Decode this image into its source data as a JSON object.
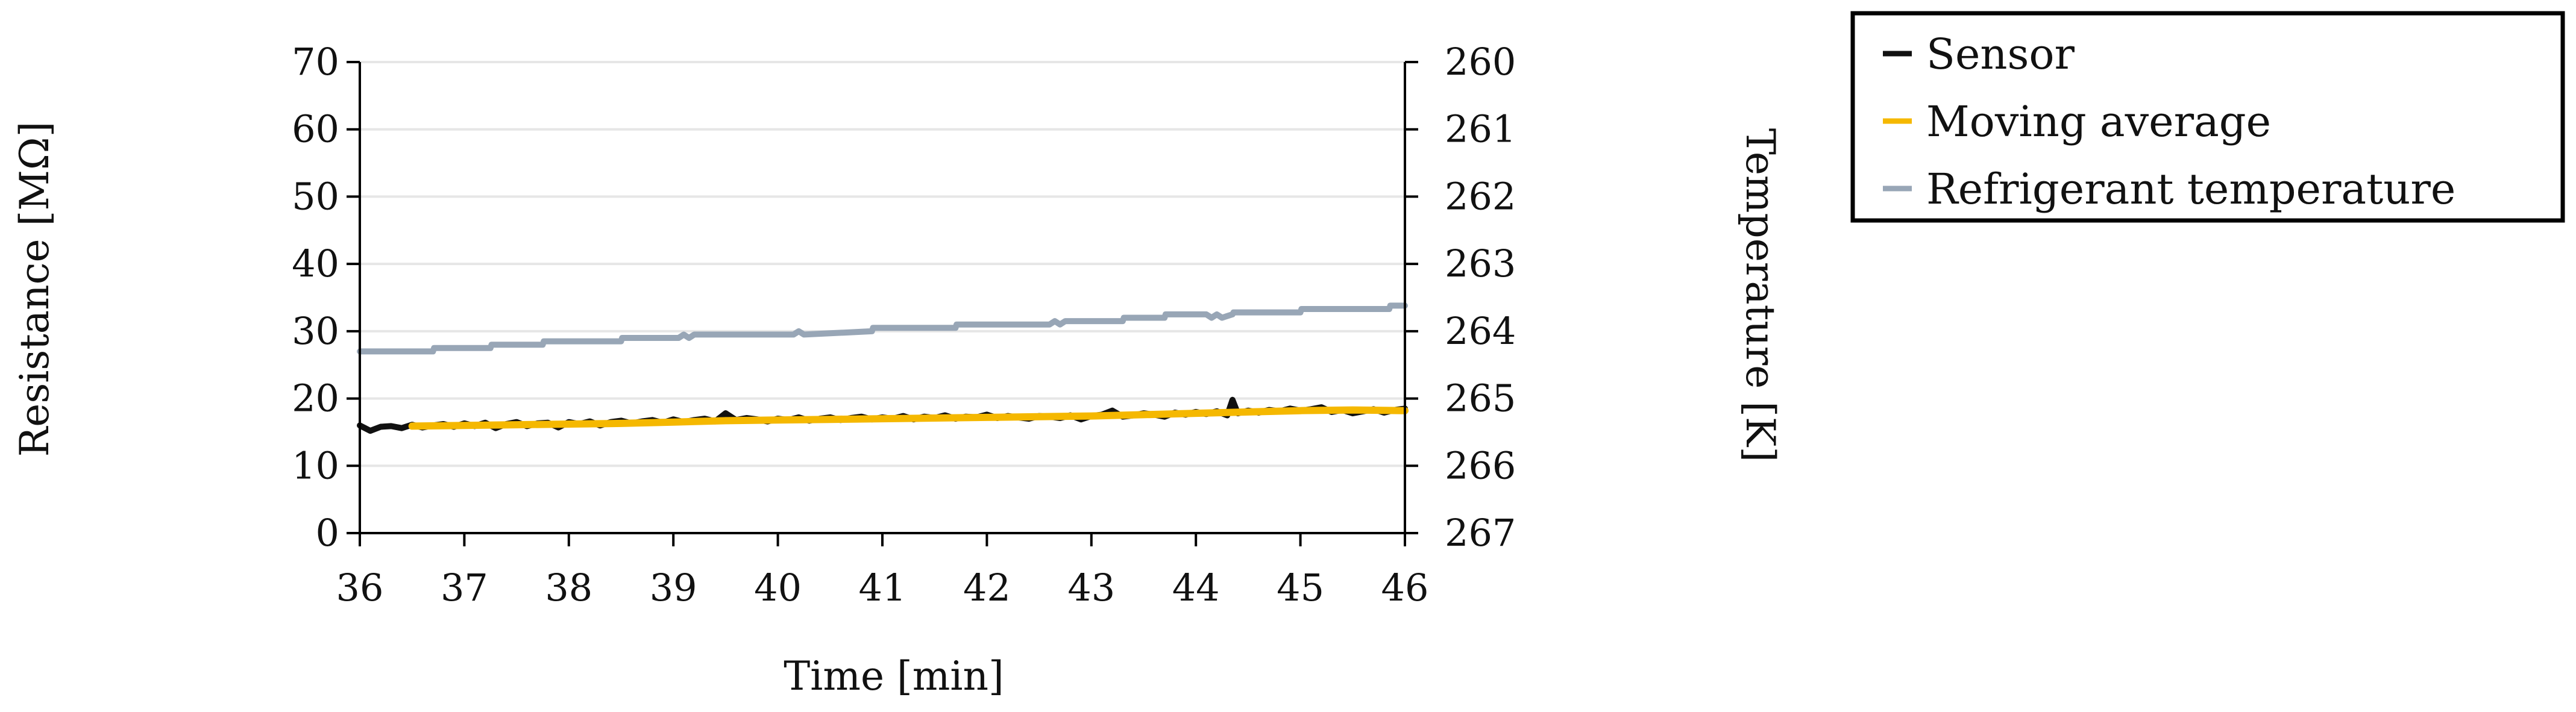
{
  "chart_data": {
    "type": "line",
    "xlabel": "Time [min]",
    "xlim": [
      36,
      46
    ],
    "x_ticks": [
      "36",
      "37",
      "38",
      "39",
      "40",
      "41",
      "42",
      "43",
      "44",
      "45",
      "46"
    ],
    "y_left": {
      "label": "Resistance [MΩ]",
      "lim": [
        0,
        70
      ],
      "ticks": [
        "0",
        "10",
        "20",
        "30",
        "40",
        "50",
        "60",
        "70"
      ]
    },
    "y_right": {
      "label": "Temperature [K]",
      "lim": [
        267,
        260
      ],
      "inverted": true,
      "ticks": [
        "267",
        "266",
        "265",
        "264",
        "263",
        "262",
        "261",
        "260"
      ]
    },
    "grid": true,
    "legend_position": "top-right, outside",
    "series": [
      {
        "name": "Sensor",
        "axis": "left",
        "color": "#111111",
        "x": [
          36.0,
          36.1,
          36.2,
          36.3,
          36.4,
          36.5,
          36.6,
          36.7,
          36.8,
          36.9,
          37.0,
          37.1,
          37.2,
          37.3,
          37.4,
          37.5,
          37.6,
          37.7,
          37.8,
          37.9,
          38.0,
          38.1,
          38.2,
          38.3,
          38.4,
          38.5,
          38.6,
          38.7,
          38.8,
          38.9,
          39.0,
          39.1,
          39.2,
          39.3,
          39.4,
          39.5,
          39.6,
          39.7,
          39.8,
          39.9,
          40.0,
          40.1,
          40.2,
          40.3,
          40.4,
          40.5,
          40.6,
          40.7,
          40.8,
          40.9,
          41.0,
          41.1,
          41.2,
          41.3,
          41.4,
          41.5,
          41.6,
          41.7,
          41.8,
          41.9,
          42.0,
          42.1,
          42.2,
          42.3,
          42.4,
          42.5,
          42.6,
          42.7,
          42.8,
          42.9,
          43.0,
          43.1,
          43.2,
          43.3,
          43.4,
          43.5,
          43.6,
          43.7,
          43.8,
          43.9,
          44.0,
          44.1,
          44.2,
          44.3,
          44.35,
          44.4,
          44.5,
          44.6,
          44.7,
          44.8,
          44.9,
          45.0,
          45.1,
          45.2,
          45.3,
          45.4,
          45.5,
          45.6,
          45.7,
          45.8,
          45.9,
          46.0
        ],
        "values": [
          16.0,
          15.2,
          15.8,
          15.9,
          15.6,
          16.1,
          15.7,
          16.0,
          16.2,
          15.8,
          16.3,
          15.9,
          16.4,
          15.6,
          16.2,
          16.5,
          15.9,
          16.3,
          16.4,
          15.7,
          16.5,
          16.2,
          16.6,
          16.0,
          16.5,
          16.7,
          16.3,
          16.6,
          16.8,
          16.4,
          16.9,
          16.5,
          16.8,
          17.0,
          16.6,
          17.8,
          16.8,
          17.1,
          16.9,
          16.6,
          17.0,
          16.8,
          17.2,
          16.7,
          17.0,
          17.2,
          16.8,
          17.1,
          17.3,
          16.9,
          17.2,
          17.0,
          17.4,
          16.9,
          17.3,
          17.1,
          17.5,
          17.0,
          17.3,
          17.2,
          17.6,
          17.1,
          17.4,
          17.2,
          17.0,
          17.4,
          17.3,
          17.1,
          17.5,
          16.9,
          17.4,
          17.6,
          18.2,
          17.3,
          17.5,
          17.8,
          17.6,
          17.3,
          17.9,
          17.6,
          18.0,
          17.7,
          18.1,
          17.5,
          19.8,
          17.8,
          18.2,
          17.9,
          18.3,
          18.1,
          18.5,
          18.2,
          18.4,
          18.7,
          18.0,
          18.3,
          17.8,
          18.1,
          18.4,
          17.9,
          18.3,
          18.5
        ]
      },
      {
        "name": "Moving average",
        "axis": "left",
        "color": "#f5b800",
        "x": [
          36.5,
          37.0,
          37.5,
          38.0,
          38.5,
          39.0,
          39.5,
          40.0,
          40.5,
          41.0,
          41.5,
          42.0,
          42.5,
          43.0,
          43.5,
          44.0,
          44.5,
          45.0,
          45.5,
          46.0
        ],
        "values": [
          15.9,
          16.0,
          16.1,
          16.2,
          16.3,
          16.5,
          16.7,
          16.8,
          16.9,
          17.0,
          17.1,
          17.2,
          17.3,
          17.4,
          17.6,
          17.8,
          18.0,
          18.2,
          18.3,
          18.2
        ]
      },
      {
        "name": "Refrigerant temperature",
        "axis": "right",
        "color": "#98a6b6",
        "x": [
          36.0,
          36.7,
          36.71,
          37.25,
          37.26,
          37.75,
          37.76,
          38.5,
          38.51,
          39.05,
          39.1,
          39.15,
          39.2,
          40.15,
          40.2,
          40.25,
          40.9,
          40.91,
          41.7,
          41.71,
          42.6,
          42.65,
          42.7,
          42.75,
          43.3,
          43.31,
          43.7,
          43.71,
          44.1,
          44.15,
          44.2,
          44.25,
          44.35,
          44.36,
          45.0,
          45.01,
          45.85,
          45.86,
          46.0
        ],
        "values": [
          264.3,
          264.3,
          264.25,
          264.25,
          264.2,
          264.2,
          264.15,
          264.15,
          264.1,
          264.1,
          264.05,
          264.1,
          264.05,
          264.05,
          264.0,
          264.05,
          264.0,
          263.95,
          263.95,
          263.9,
          263.9,
          263.85,
          263.9,
          263.85,
          263.85,
          263.8,
          263.8,
          263.75,
          263.75,
          263.8,
          263.75,
          263.8,
          263.75,
          263.72,
          263.72,
          263.67,
          263.67,
          263.62,
          263.62
        ]
      }
    ]
  }
}
